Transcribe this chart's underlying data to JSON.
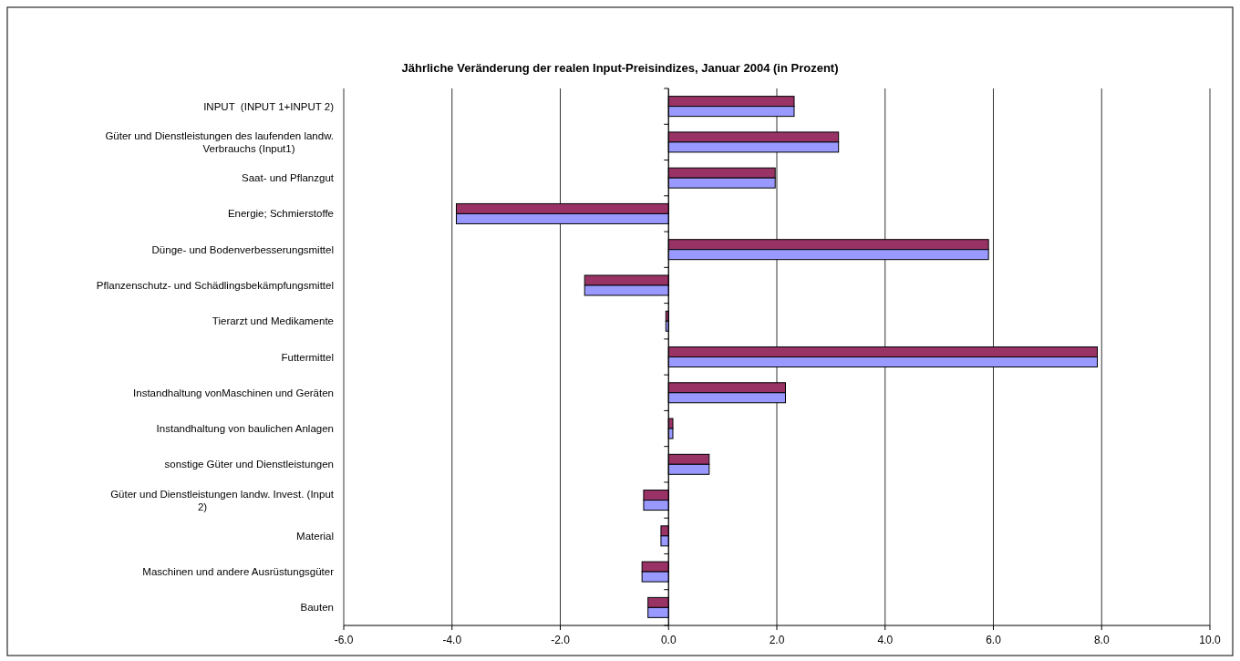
{
  "chart_data": {
    "type": "bar",
    "orientation": "horizontal",
    "title": "Jährliche Veränderung der realen Input-Preisindizes, Januar 2004 (in Prozent)",
    "categories": [
      "INPUT  (INPUT 1+INPUT 2)",
      "Güter und Dienstleistungen des laufenden landw. Verbrauchs (Input1)",
      "Saat- und Pflanzgut",
      "Energie; Schmierstoffe",
      "Dünge- und Bodenverbesserungsmittel",
      "Pflanzenschutz- und Schädlingsbekämpfungsmittel",
      "Tierarzt und Medikamente",
      "Futtermittel",
      "Instandhaltung vonMaschinen und Geräten",
      "Instandhaltung von baulichen Anlagen",
      "sonstige Güter und Dienstleistungen",
      "Güter und Dienstleistungen landw. Invest. (Input 2)",
      "Material",
      "Maschinen und andere Ausrüstungsgüter",
      "Bauten"
    ],
    "series": [
      {
        "color": "#993366",
        "values": [
          2.32,
          3.14,
          1.97,
          -3.92,
          5.91,
          -1.55,
          -0.05,
          7.92,
          2.16,
          0.08,
          0.75,
          -0.46,
          -0.14,
          -0.49,
          -0.38
        ]
      },
      {
        "color": "#9999ff",
        "values": [
          2.32,
          3.14,
          1.97,
          -3.92,
          5.91,
          -1.55,
          -0.05,
          7.92,
          2.16,
          0.08,
          0.75,
          -0.46,
          -0.14,
          -0.49,
          -0.38
        ]
      }
    ],
    "xlim": [
      -6,
      10
    ],
    "xticks": [
      {
        "value": -6,
        "label": "-6.0"
      },
      {
        "value": -4,
        "label": "-4.0"
      },
      {
        "value": -2,
        "label": "-2.0"
      },
      {
        "value": 0,
        "label": "0.0"
      },
      {
        "value": 2,
        "label": "2.0"
      },
      {
        "value": 4,
        "label": "4.0"
      },
      {
        "value": 6,
        "label": "6.0"
      },
      {
        "value": 8,
        "label": "8.0"
      },
      {
        "value": 10,
        "label": "10.0"
      }
    ],
    "grid": "x"
  }
}
